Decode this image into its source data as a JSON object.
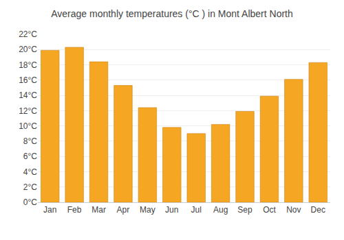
{
  "chart_data": {
    "type": "bar",
    "title": "Average monthly temperatures (°C ) in Mont Albert North",
    "categories": [
      "Jan",
      "Feb",
      "Mar",
      "Apr",
      "May",
      "Jun",
      "Jul",
      "Aug",
      "Sep",
      "Oct",
      "Nov",
      "Dec"
    ],
    "values": [
      19.9,
      20.3,
      18.4,
      15.3,
      12.4,
      9.8,
      9.0,
      10.2,
      11.9,
      13.9,
      16.1,
      18.3
    ],
    "color": "#F5A623",
    "ylim": [
      0,
      22
    ],
    "yticks": [
      {
        "value": 0,
        "label": "0°C"
      },
      {
        "value": 2,
        "label": "2°C"
      },
      {
        "value": 4,
        "label": "4°C"
      },
      {
        "value": 6,
        "label": "6°C"
      },
      {
        "value": 8,
        "label": "8°C"
      },
      {
        "value": 10,
        "label": "10°C"
      },
      {
        "value": 12,
        "label": "12°C"
      },
      {
        "value": 14,
        "label": "14°C"
      },
      {
        "value": 16,
        "label": "16°C"
      },
      {
        "value": 18,
        "label": "18°C"
      },
      {
        "value": 20,
        "label": "20°C"
      },
      {
        "value": 22,
        "label": "22°C"
      }
    ],
    "grid": true
  }
}
